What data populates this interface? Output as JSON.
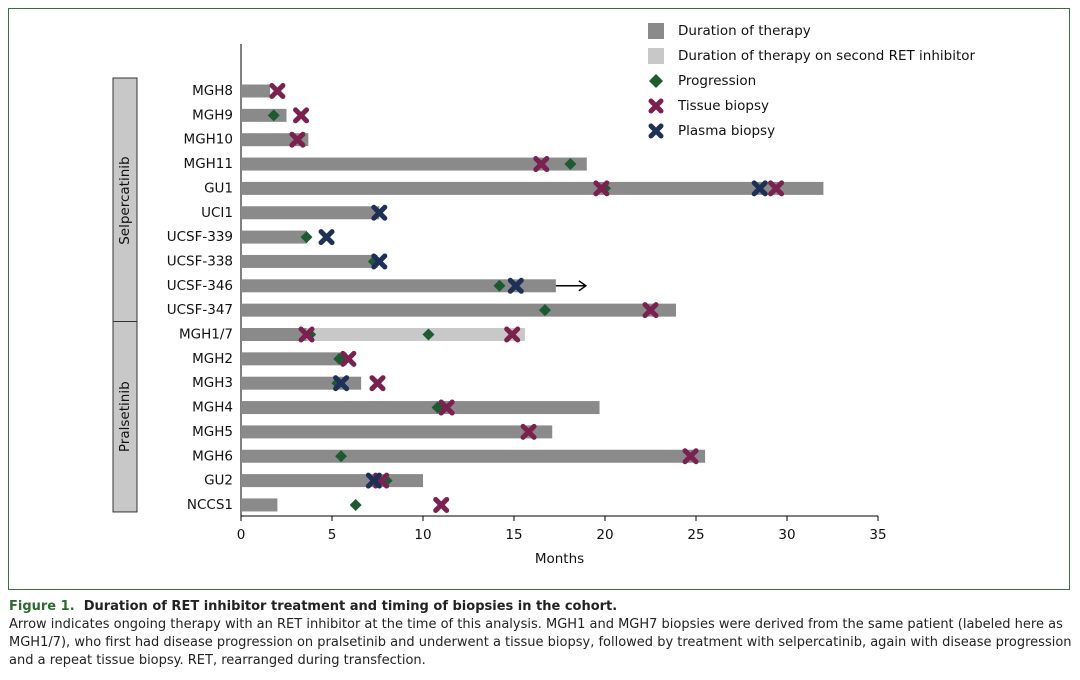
{
  "chart_data": {
    "type": "swimmer",
    "categories": [
      "MGH8",
      "MGH9",
      "MGH10",
      "MGH11",
      "GU1",
      "UCI1",
      "UCSF-339",
      "UCSF-338",
      "UCSF-346",
      "UCSF-347",
      "MGH1/7",
      "MGH2",
      "MGH3",
      "MGH4",
      "MGH5",
      "MGH6",
      "GU2",
      "NCCS1"
    ],
    "groups": [
      {
        "label": "Selpercatinib",
        "count": 10
      },
      {
        "label": "Pralsetinib",
        "count": 8
      }
    ],
    "series": [
      {
        "name": "Duration of therapy",
        "marker": "bar",
        "color": "#8a8a8a",
        "values": [
          1.6,
          2.5,
          3.7,
          19.0,
          32.0,
          7.6,
          3.6,
          7.5,
          17.3,
          23.9,
          3.6,
          5.8,
          6.6,
          19.7,
          17.1,
          25.5,
          10.0,
          2.0
        ]
      },
      {
        "name": "Duration of therapy on second RET inhibitor",
        "marker": "bar",
        "color": "#c8c8c8",
        "stacked": true,
        "values": [
          null,
          null,
          null,
          null,
          null,
          null,
          null,
          null,
          null,
          null,
          12.0,
          null,
          null,
          null,
          null,
          null,
          null,
          null
        ]
      },
      {
        "name": "Progression",
        "marker": "diamond",
        "color": "#1d5a32",
        "values": [
          null,
          [
            1.8
          ],
          null,
          [
            18.1
          ],
          [
            20.0
          ],
          null,
          [
            3.6
          ],
          [
            7.3
          ],
          [
            14.2
          ],
          [
            16.7
          ],
          [
            3.8,
            10.3
          ],
          [
            5.4
          ],
          [
            5.3
          ],
          [
            10.8
          ],
          null,
          [
            5.5
          ],
          [
            8.0
          ],
          [
            6.3
          ]
        ]
      },
      {
        "name": "Tissue biopsy",
        "marker": "x",
        "color": "#7a2150",
        "values": [
          [
            2.0
          ],
          [
            3.3
          ],
          [
            3.1
          ],
          [
            16.5
          ],
          [
            19.8,
            29.4
          ],
          null,
          null,
          null,
          null,
          [
            22.5
          ],
          [
            3.6,
            14.9
          ],
          [
            5.9
          ],
          [
            7.5
          ],
          [
            11.3
          ],
          [
            15.8
          ],
          [
            24.7
          ],
          [
            7.7
          ],
          [
            11.0
          ]
        ]
      },
      {
        "name": "Plasma biopsy",
        "marker": "x",
        "color": "#1f3057",
        "values": [
          null,
          null,
          null,
          null,
          [
            28.5
          ],
          [
            7.6
          ],
          [
            4.7
          ],
          [
            7.6
          ],
          [
            15.1
          ],
          null,
          null,
          null,
          [
            5.5
          ],
          null,
          null,
          null,
          [
            7.3
          ],
          null
        ]
      }
    ],
    "ongoing": [
      false,
      false,
      false,
      false,
      false,
      false,
      false,
      false,
      true,
      false,
      false,
      false,
      false,
      false,
      false,
      false,
      false,
      false
    ],
    "xlabel": "Months",
    "xlim": [
      0,
      35
    ],
    "xticks": [
      0,
      5,
      10,
      15,
      20,
      25,
      30,
      35
    ]
  },
  "caption": {
    "label": "Figure 1.",
    "title": "Duration of RET inhibitor treatment and timing of biopsies in the cohort.",
    "text": "Arrow indicates ongoing therapy with an RET inhibitor at the time of this analysis. MGH1 and MGH7 biopsies were derived from the same patient (labeled here as MGH1/7), who first had disease progression on pralsetinib and underwent a tissue biopsy, followed by treatment with selpercatinib, again with disease progression and a repeat tissue biopsy. RET, rearranged during transfection."
  }
}
